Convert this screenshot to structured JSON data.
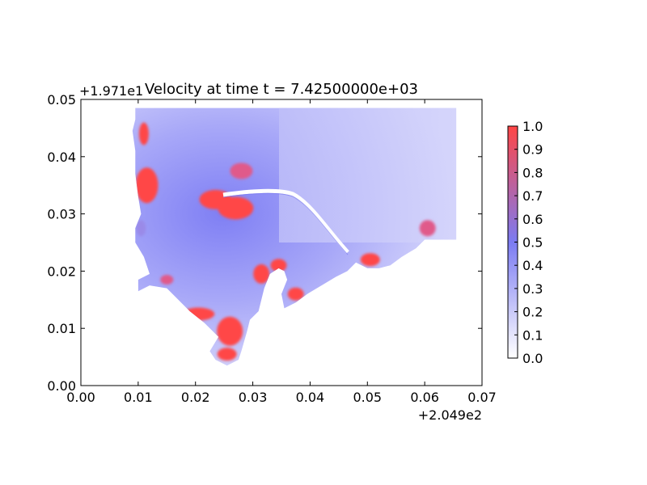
{
  "chart_data": {
    "type": "heatmap",
    "title": "Velocity at time t = 7.42500000e+03",
    "xlabel": "",
    "ylabel": "",
    "x_offset_label": "+2.049e2",
    "y_offset_label": "+1.971e1",
    "xlim": [
      0.0,
      0.07
    ],
    "ylim": [
      0.0,
      0.05
    ],
    "x_ticks": [
      "0.00",
      "0.01",
      "0.02",
      "0.03",
      "0.04",
      "0.05",
      "0.06",
      "0.07"
    ],
    "y_ticks": [
      "0.00",
      "0.01",
      "0.02",
      "0.03",
      "0.04",
      "0.05"
    ],
    "colorbar": {
      "range": [
        0.0,
        1.0
      ],
      "ticks": [
        "0.0",
        "0.1",
        "0.2",
        "0.3",
        "0.4",
        "0.5",
        "0.6",
        "0.7",
        "0.8",
        "0.9",
        "1.0"
      ],
      "colors": [
        "#ffffff",
        "#7b7bf2",
        "#ff4646"
      ]
    },
    "grid": false,
    "hotspots": [
      {
        "x": 0.0115,
        "y": 0.035,
        "v": 1.0
      },
      {
        "x": 0.0235,
        "y": 0.0325,
        "v": 1.0
      },
      {
        "x": 0.027,
        "y": 0.031,
        "v": 1.0
      },
      {
        "x": 0.028,
        "y": 0.0375,
        "v": 0.7
      },
      {
        "x": 0.011,
        "y": 0.044,
        "v": 0.9
      },
      {
        "x": 0.0315,
        "y": 0.0195,
        "v": 1.0
      },
      {
        "x": 0.0345,
        "y": 0.021,
        "v": 0.9
      },
      {
        "x": 0.0375,
        "y": 0.016,
        "v": 0.9
      },
      {
        "x": 0.0205,
        "y": 0.0125,
        "v": 1.0
      },
      {
        "x": 0.026,
        "y": 0.0095,
        "v": 1.0
      },
      {
        "x": 0.0255,
        "y": 0.0055,
        "v": 1.0
      },
      {
        "x": 0.015,
        "y": 0.0185,
        "v": 0.8
      },
      {
        "x": 0.0505,
        "y": 0.022,
        "v": 1.0
      },
      {
        "x": 0.0605,
        "y": 0.0275,
        "v": 0.8
      },
      {
        "x": 0.0105,
        "y": 0.0275,
        "v": 0.6
      }
    ]
  }
}
